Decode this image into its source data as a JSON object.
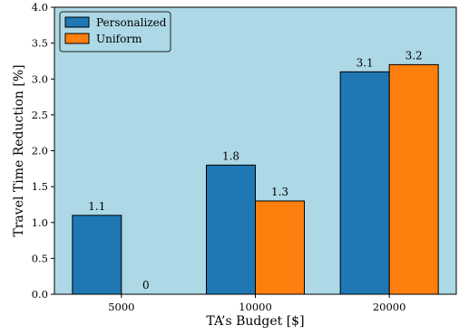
{
  "chart_data": {
    "type": "bar",
    "categories": [
      "5000",
      "10000",
      "20000"
    ],
    "series": [
      {
        "name": "Personalized",
        "values": [
          1.1,
          1.8,
          3.1
        ],
        "color": "#1f77b4"
      },
      {
        "name": "Uniform",
        "values": [
          0,
          1.3,
          3.2
        ],
        "color": "#ff7f0e"
      }
    ],
    "data_labels": [
      [
        "1.1",
        "1.8",
        "3.1"
      ],
      [
        "0",
        "1.3",
        "3.2"
      ]
    ],
    "xlabel": "TA’s Budget [$]",
    "ylabel": "Travel Time Reduction [%]",
    "ylim": [
      0,
      4.0
    ],
    "yticks": [
      "0.0",
      "0.5",
      "1.0",
      "1.5",
      "2.0",
      "2.5",
      "3.0",
      "3.5",
      "4.0"
    ],
    "legend_position": "top-left",
    "grid": false,
    "plot_background": "#add8e6"
  }
}
